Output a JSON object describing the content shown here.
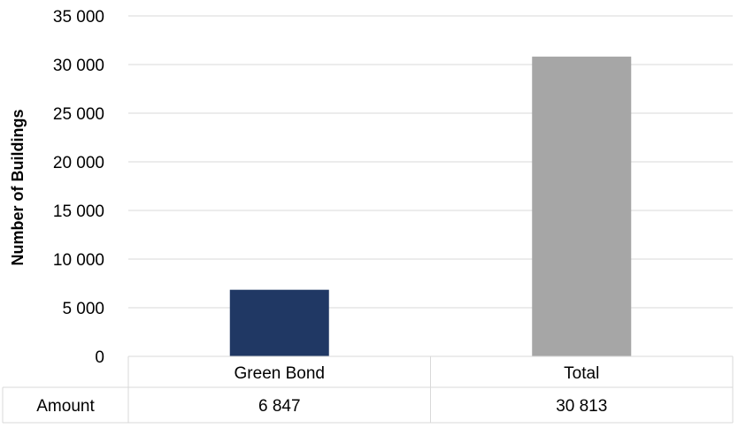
{
  "chart_data": {
    "type": "bar",
    "categories": [
      "Green Bond",
      "Total"
    ],
    "values": [
      6847,
      30813
    ],
    "value_labels": [
      "6 847",
      "30 813"
    ],
    "colors": [
      "#203864",
      "#a6a6a6"
    ],
    "ylabel": "Number of Buildings",
    "xlabel": "",
    "ylim": [
      0,
      35000
    ],
    "yticks": [
      0,
      5000,
      10000,
      15000,
      20000,
      25000,
      30000,
      35000
    ],
    "ytick_labels": [
      "0",
      "5 000",
      "10 000",
      "15 000",
      "20 000",
      "25 000",
      "30 000",
      "35 000"
    ],
    "grid": true,
    "data_table": {
      "row_label": "Amount",
      "values": [
        "6 847",
        "30 813"
      ]
    }
  }
}
